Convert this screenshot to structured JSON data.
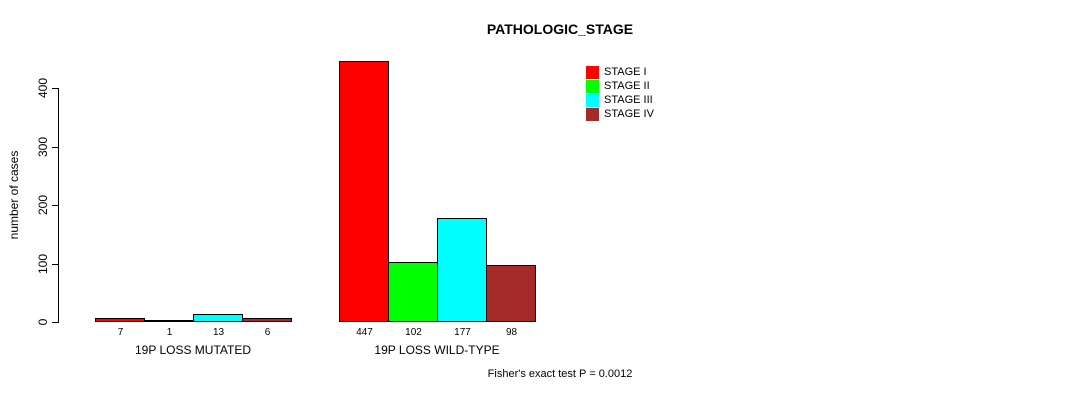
{
  "chart_data": {
    "type": "bar",
    "title": "PATHOLOGIC_STAGE",
    "ylabel": "number of cases",
    "xlabel": "",
    "categories": [
      "19P LOSS MUTATED",
      "19P LOSS WILD-TYPE"
    ],
    "series": [
      {
        "name": "STAGE I",
        "color": "#ff0000",
        "values": [
          7,
          447
        ]
      },
      {
        "name": "STAGE II",
        "color": "#00ff00",
        "values": [
          1,
          102
        ]
      },
      {
        "name": "STAGE III",
        "color": "#00ffff",
        "values": [
          13,
          177
        ]
      },
      {
        "name": "STAGE IV",
        "color": "#a52a2a",
        "values": [
          6,
          98
        ]
      }
    ],
    "yticks": [
      0,
      100,
      200,
      300,
      400
    ],
    "ylim": [
      0,
      455
    ],
    "grid": false,
    "legend_position": "top-right",
    "bar_value_labels_shown": true,
    "annotation": "Fisher's exact test P = 0.0012"
  }
}
